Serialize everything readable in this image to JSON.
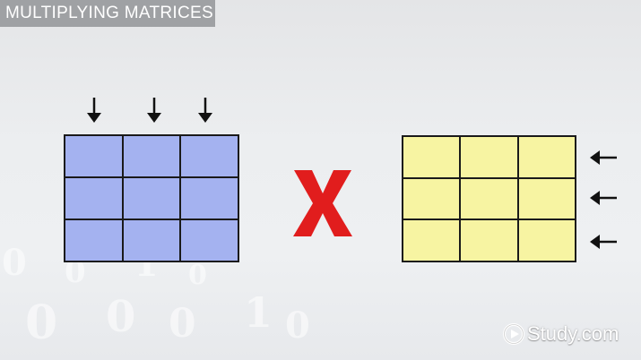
{
  "slide": {
    "title": "MULTIPLYING MATRICES",
    "operator_icon": "red-x-multiply-icon",
    "matrix_a": {
      "rows": 3,
      "cols": 3,
      "fill_color": "#a4b2f0",
      "arrows": [
        "arrow-down-icon",
        "arrow-down-icon",
        "arrow-down-icon"
      ]
    },
    "matrix_b": {
      "rows": 3,
      "cols": 3,
      "fill_color": "#f7f4a2",
      "arrows": [
        "arrow-left-icon",
        "arrow-left-icon",
        "arrow-left-icon"
      ]
    },
    "colors": {
      "title_bar": "#9fa1a4",
      "operator": "#e11d1d",
      "grid_lines": "#1a1a1a"
    }
  },
  "logo": {
    "text": "Study.com",
    "icon": "play-circle-icon"
  }
}
